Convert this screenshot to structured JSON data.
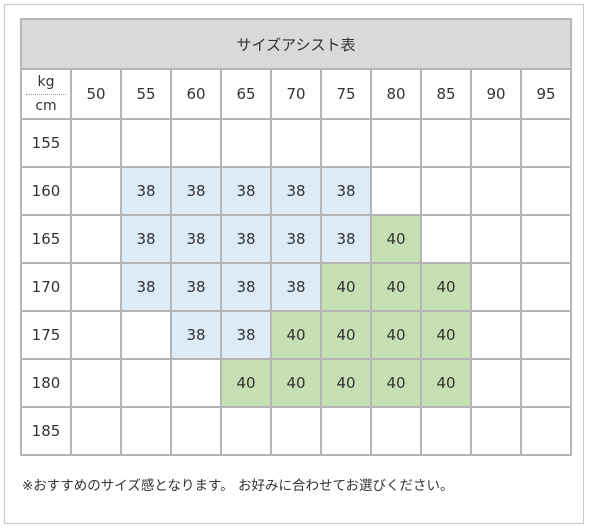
{
  "title": "サイズアシスト表",
  "corner": {
    "top": "kg",
    "bottom": "cm"
  },
  "weights": [
    "50",
    "55",
    "60",
    "65",
    "70",
    "75",
    "80",
    "85",
    "90",
    "95"
  ],
  "heights": [
    "155",
    "160",
    "165",
    "170",
    "175",
    "180",
    "185"
  ],
  "cells": [
    [
      "",
      "",
      "",
      "",
      "",
      "",
      "",
      "",
      "",
      ""
    ],
    [
      "",
      "38",
      "38",
      "38",
      "38",
      "38",
      "",
      "",
      "",
      ""
    ],
    [
      "",
      "38",
      "38",
      "38",
      "38",
      "38",
      "40",
      "",
      "",
      ""
    ],
    [
      "",
      "38",
      "38",
      "38",
      "38",
      "40",
      "40",
      "40",
      "",
      ""
    ],
    [
      "",
      "",
      "38",
      "38",
      "40",
      "40",
      "40",
      "40",
      "",
      ""
    ],
    [
      "",
      "",
      "",
      "40",
      "40",
      "40",
      "40",
      "40",
      "",
      ""
    ],
    [
      "",
      "",
      "",
      "",
      "",
      "",
      "",
      "",
      "",
      ""
    ]
  ],
  "note": "※おすすめのサイズ感となります。 お好みに合わせてお選びください。",
  "colors": {
    "size_38": "#ddebf7",
    "size_40": "#c6e0b4",
    "header": "#d9d9d9",
    "border": "#b5b5b5"
  }
}
